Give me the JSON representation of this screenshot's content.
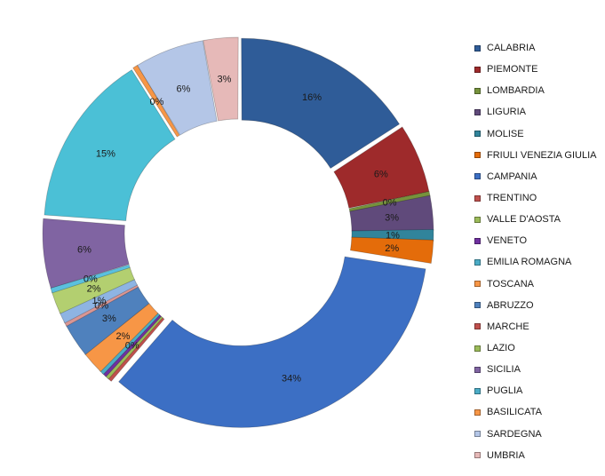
{
  "chart_data": {
    "type": "pie",
    "variant": "exploded doughnut",
    "legend_position": "right",
    "series": [
      {
        "name": "CALABRIA",
        "value": 16,
        "label": "16%",
        "color": "#2F5C98"
      },
      {
        "name": "PIEMONTE",
        "value": 6,
        "label": "6%",
        "color": "#9E2A2B"
      },
      {
        "name": "LOMBARDIA",
        "value": 0,
        "label": "0%",
        "color": "#76923C"
      },
      {
        "name": "LIGURIA",
        "value": 3,
        "label": "3%",
        "color": "#604A7B"
      },
      {
        "name": "MOLISE",
        "value": 1,
        "label": "1%",
        "color": "#31849B"
      },
      {
        "name": "FRIULI VENEZIA  GIULIA",
        "value": 2,
        "label": "2%",
        "color": "#E46C0A"
      },
      {
        "name": "CAMPANIA",
        "value": 34,
        "label": "34%",
        "color": "#3C6FC4"
      },
      {
        "name": "TRENTINO",
        "value": 0,
        "label": "",
        "color": "#C0504D"
      },
      {
        "name": "VALLE D'AOSTA",
        "value": 0,
        "label": "",
        "color": "#9BBB59"
      },
      {
        "name": "VENETO",
        "value": 0,
        "label": "0%",
        "color": "#7030A0"
      },
      {
        "name": "EMILIA ROMAGNA",
        "value": 0,
        "label": "",
        "color": "#4BACC6"
      },
      {
        "name": "TOSCANA",
        "value": 2,
        "label": "2%",
        "color": "#F79646"
      },
      {
        "name": "ABRUZZO",
        "value": 3,
        "label": "3%",
        "color": "#4F81BD"
      },
      {
        "name": "MARCHE",
        "value": 0,
        "label": "0%",
        "color": "#D99694"
      },
      {
        "name": "LAZIO",
        "value": 1,
        "label": "1%",
        "color": "#8EB4E3"
      },
      {
        "name": "SICILIA",
        "value": 2,
        "label": "2%",
        "color": "#B3CF70"
      },
      {
        "name": "PUGLIA",
        "value": 0,
        "label": "0%",
        "color": "#5BC0DE"
      },
      {
        "name": "BASILICATA",
        "value": 6,
        "label": "6%",
        "color": "#8064A2"
      },
      {
        "name": "SARDEGNA",
        "value": 15,
        "label": "15%",
        "color": "#4BC0D6"
      },
      {
        "name": "UMBRIA",
        "value": 0,
        "label": "0%",
        "color": "#F79646"
      },
      {
        "name": "",
        "value": 6,
        "label": "6%",
        "color": "#B4C6E7"
      },
      {
        "name": "",
        "value": 3,
        "label": "3%",
        "color": "#E6B9B8"
      }
    ],
    "legend": [
      {
        "name": "CALABRIA",
        "color": "#2F5C98"
      },
      {
        "name": "PIEMONTE",
        "color": "#9E2A2B"
      },
      {
        "name": "LOMBARDIA",
        "color": "#76923C"
      },
      {
        "name": "LIGURIA",
        "color": "#604A7B"
      },
      {
        "name": "MOLISE",
        "color": "#31849B"
      },
      {
        "name": "FRIULI VENEZIA  GIULIA",
        "color": "#E46C0A"
      },
      {
        "name": "CAMPANIA",
        "color": "#3C6FC4"
      },
      {
        "name": "TRENTINO",
        "color": "#C0504D"
      },
      {
        "name": "VALLE D'AOSTA",
        "color": "#9BBB59"
      },
      {
        "name": "VENETO",
        "color": "#7030A0"
      },
      {
        "name": "EMILIA ROMAGNA",
        "color": "#4BACC6"
      },
      {
        "name": "TOSCANA",
        "color": "#F79646"
      },
      {
        "name": "ABRUZZO",
        "color": "#4F81BD"
      },
      {
        "name": "MARCHE",
        "color": "#C0504D"
      },
      {
        "name": "LAZIO",
        "color": "#9BBB59"
      },
      {
        "name": "SICILIA",
        "color": "#8064A2"
      },
      {
        "name": "PUGLIA",
        "color": "#4BACC6"
      },
      {
        "name": "BASILICATA",
        "color": "#F79646"
      },
      {
        "name": "SARDEGNA",
        "color": "#B4C6E7"
      },
      {
        "name": "UMBRIA",
        "color": "#E6B9B8"
      }
    ]
  }
}
